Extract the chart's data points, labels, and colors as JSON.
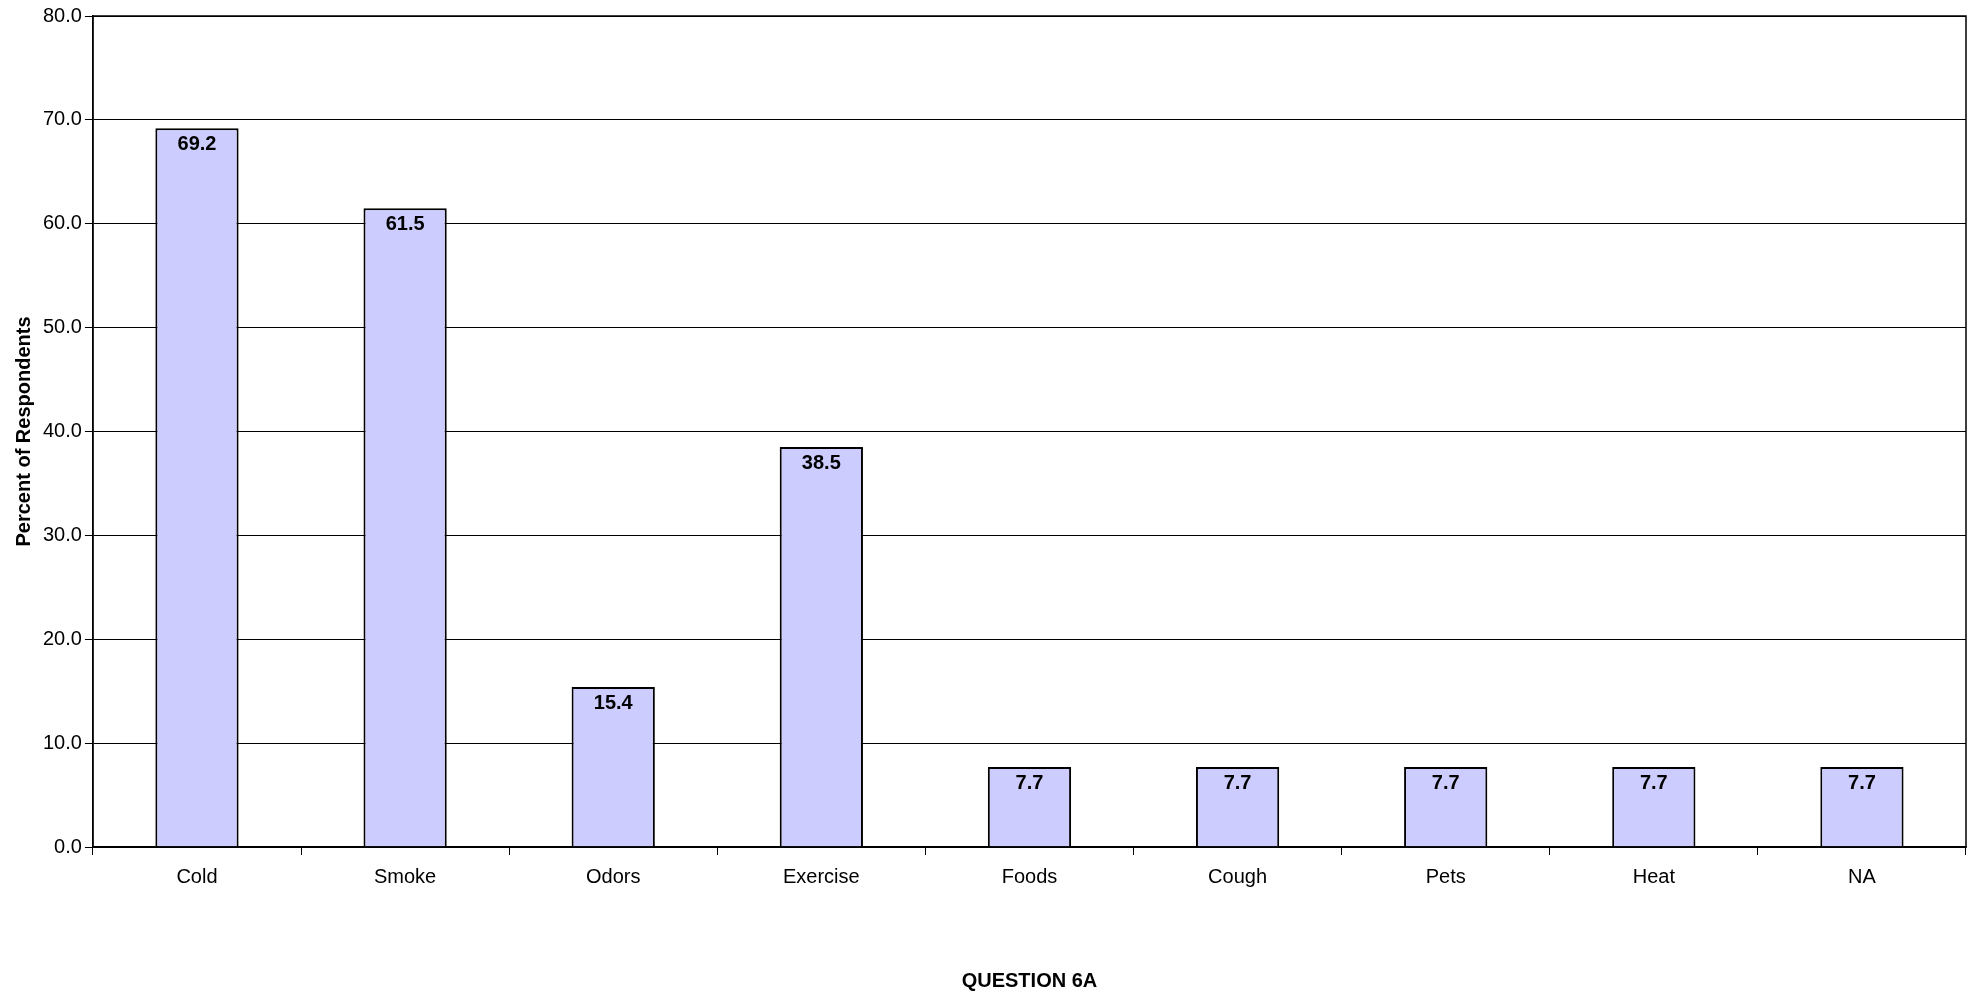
{
  "chart_data": {
    "type": "bar",
    "xlabel": "QUESTION 6A",
    "ylabel": "Percent of Respondents",
    "categories": [
      "Cold",
      "Smoke",
      "Odors",
      "Exercise",
      "Foods",
      "Cough",
      "Pets",
      "Heat",
      "NA"
    ],
    "values": [
      69.2,
      61.5,
      15.4,
      38.5,
      7.7,
      7.7,
      7.7,
      7.7,
      7.7
    ],
    "color": "#ccccff",
    "ylim": [
      0,
      80
    ],
    "yticks": [
      {
        "value": 0,
        "label": "0.0"
      },
      {
        "value": 10,
        "label": "10.0"
      },
      {
        "value": 20,
        "label": "20.0"
      },
      {
        "value": 30,
        "label": "30.0"
      },
      {
        "value": 40,
        "label": "40.0"
      },
      {
        "value": 50,
        "label": "50.0"
      },
      {
        "value": 60,
        "label": "60.0"
      },
      {
        "value": 70,
        "label": "70.0"
      },
      {
        "value": 80,
        "label": "80.0"
      }
    ],
    "grid": "y",
    "legend": false,
    "data_labels": true
  }
}
